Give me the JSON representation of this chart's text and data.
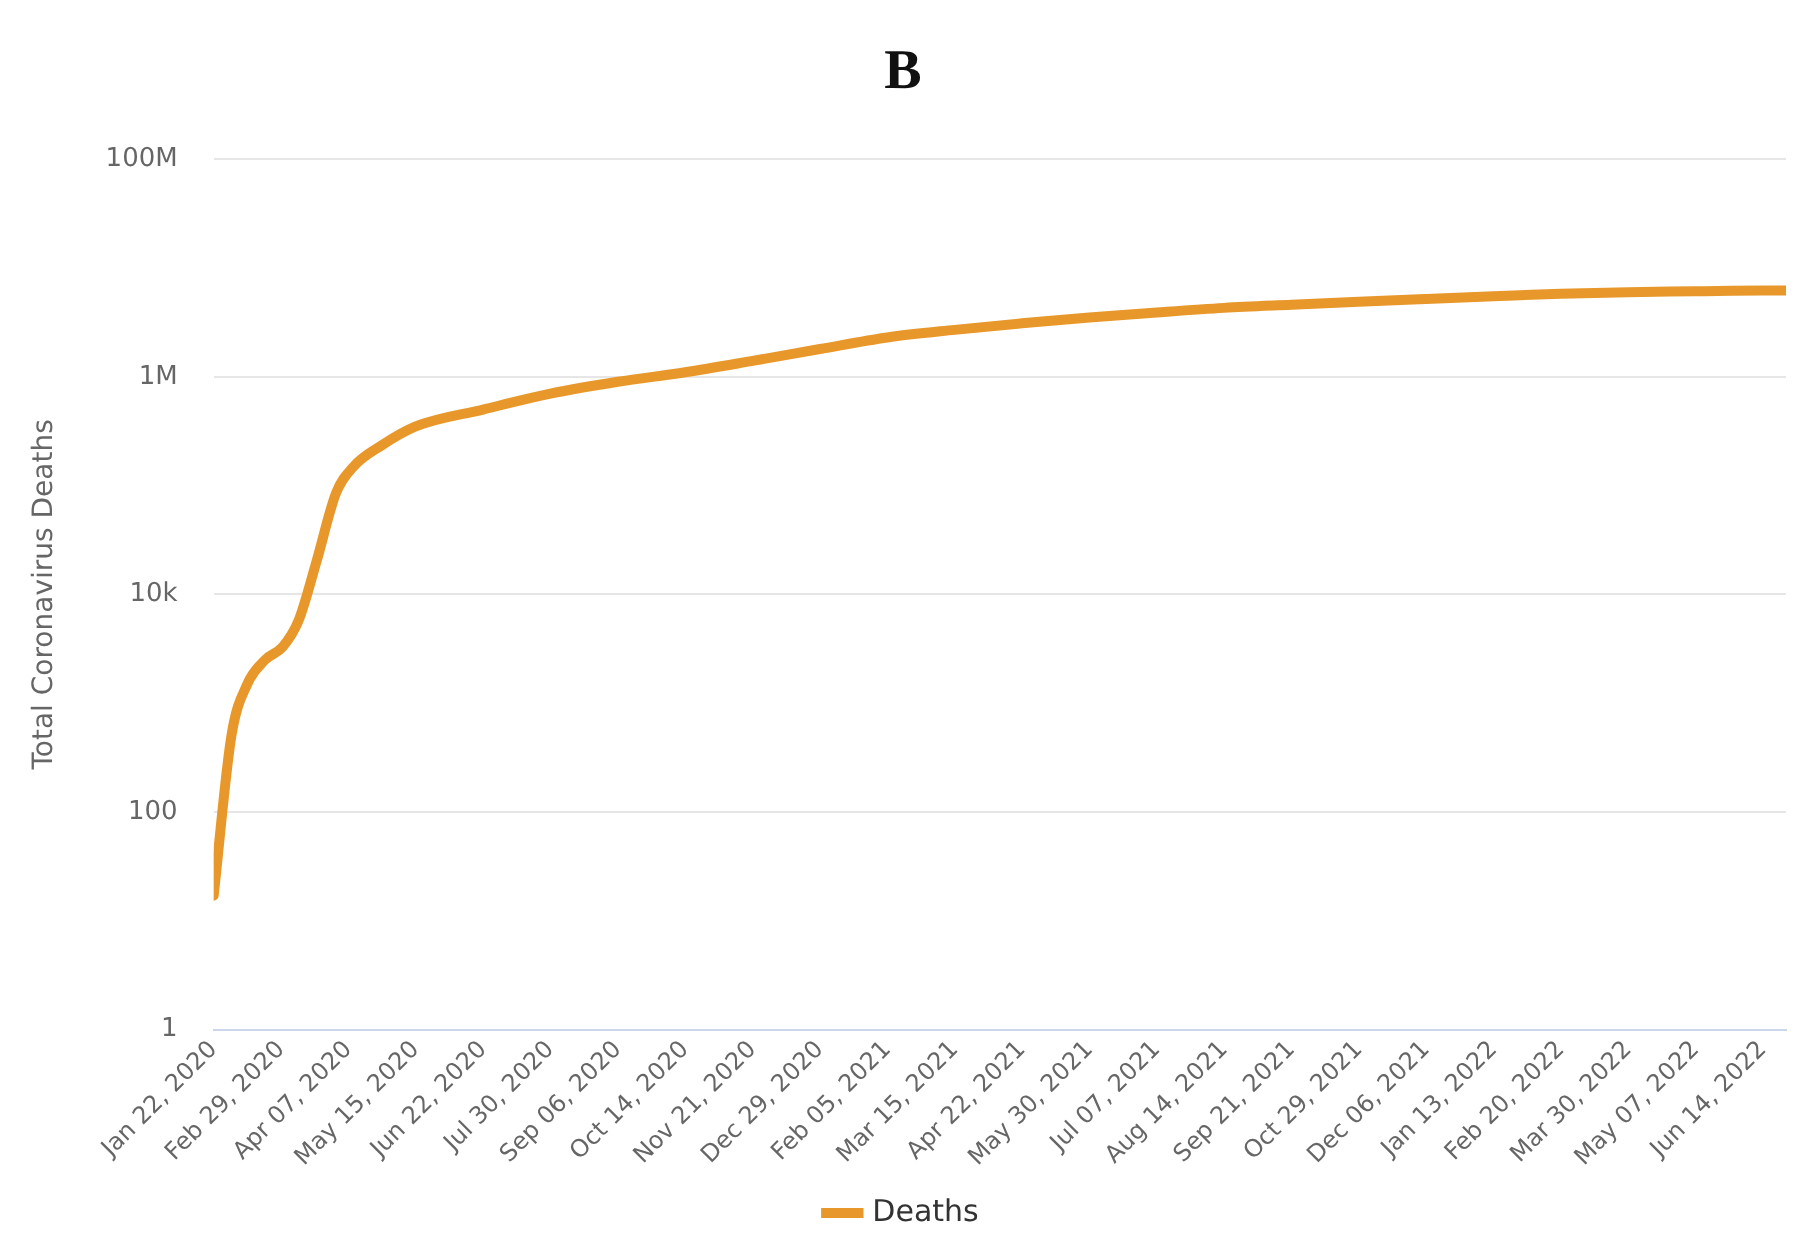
{
  "chart_data": {
    "type": "line",
    "title": "B",
    "ylabel": "Total Coronavirus Deaths",
    "x": [
      "2020-01-22",
      "2020-02-01",
      "2020-02-10",
      "2020-02-20",
      "2020-03-01",
      "2020-03-10",
      "2020-03-20",
      "2020-03-31",
      "2020-04-10",
      "2020-04-25",
      "2020-05-15",
      "2020-06-22",
      "2020-07-30",
      "2020-09-06",
      "2020-10-14",
      "2020-11-21",
      "2020-12-29",
      "2021-02-05",
      "2021-03-15",
      "2021-04-22",
      "2021-05-30",
      "2021-07-07",
      "2021-08-14",
      "2021-09-21",
      "2021-10-29",
      "2021-12-06",
      "2022-01-13",
      "2022-02-20",
      "2022-03-30",
      "2022-05-07",
      "2022-06-14",
      "2022-06-27"
    ],
    "series": [
      {
        "name": "Deaths",
        "color": "#e8982a",
        "values": [
          17,
          500,
          1500,
          2500,
          3300,
          5800,
          20000,
          85000,
          150000,
          230000,
          350000,
          500000,
          700000,
          900000,
          1100000,
          1400000,
          1800000,
          2300000,
          2700000,
          3100000,
          3500000,
          3900000,
          4300000,
          4600000,
          4900000,
          5200000,
          5500000,
          5800000,
          6000000,
          6100000,
          6200000,
          6200000
        ]
      }
    ],
    "xlim": [
      "2020-01-22",
      "2022-06-27"
    ],
    "xticks": [
      {
        "value": "2020-01-22",
        "label": "Jan 22, 2020"
      },
      {
        "value": "2020-02-29",
        "label": "Feb 29, 2020"
      },
      {
        "value": "2020-04-07",
        "label": "Apr 07, 2020"
      },
      {
        "value": "2020-05-15",
        "label": "May 15, 2020"
      },
      {
        "value": "2020-06-22",
        "label": "Jun 22, 2020"
      },
      {
        "value": "2020-07-30",
        "label": "Jul 30, 2020"
      },
      {
        "value": "2020-09-06",
        "label": "Sep 06, 2020"
      },
      {
        "value": "2020-10-14",
        "label": "Oct 14, 2020"
      },
      {
        "value": "2020-11-21",
        "label": "Nov 21, 2020"
      },
      {
        "value": "2020-12-29",
        "label": "Dec 29, 2020"
      },
      {
        "value": "2021-02-05",
        "label": "Feb 05, 2021"
      },
      {
        "value": "2021-03-15",
        "label": "Mar 15, 2021"
      },
      {
        "value": "2021-04-22",
        "label": "Apr 22, 2021"
      },
      {
        "value": "2021-05-30",
        "label": "May 30, 2021"
      },
      {
        "value": "2021-07-07",
        "label": "Jul 07, 2021"
      },
      {
        "value": "2021-08-14",
        "label": "Aug 14, 2021"
      },
      {
        "value": "2021-09-21",
        "label": "Sep 21, 2021"
      },
      {
        "value": "2021-10-29",
        "label": "Oct 29, 2021"
      },
      {
        "value": "2021-12-06",
        "label": "Dec 06, 2021"
      },
      {
        "value": "2022-01-13",
        "label": "Jan 13, 2022"
      },
      {
        "value": "2022-02-20",
        "label": "Feb 20, 2022"
      },
      {
        "value": "2022-03-30",
        "label": "Mar 30, 2022"
      },
      {
        "value": "2022-05-07",
        "label": "May 07, 2022"
      },
      {
        "value": "2022-06-14",
        "label": "Jun 14, 2022"
      }
    ],
    "ylim": [
      1,
      100000000
    ],
    "yticks": [
      1,
      100,
      {
        "value": 10000,
        "label": "10k"
      },
      {
        "value": 1000000,
        "label": "1M"
      },
      {
        "value": 100000000,
        "label": "100M"
      }
    ],
    "log": "y",
    "grid": "y",
    "legend": "bottom",
    "marker": "none",
    "line_style": "solid"
  }
}
